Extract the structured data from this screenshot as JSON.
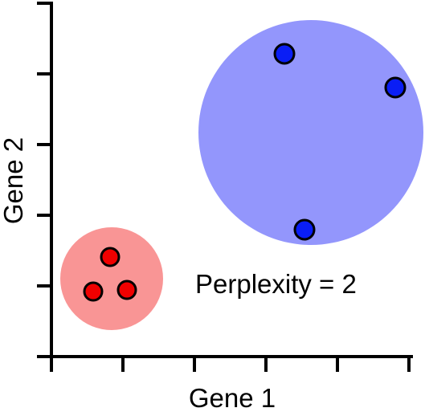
{
  "labels": {
    "x_axis": "Gene 1",
    "y_axis": "Gene 2",
    "annotation": "Perplexity = 2"
  },
  "colors": {
    "axis": "#000000",
    "blue_cluster_fill": "#9396fc",
    "blue_point": "#0a1ef5",
    "red_cluster_fill": "#f99595",
    "red_point": "#f00000"
  },
  "clusters": [
    {
      "name": "blue-cluster",
      "fill_key": "blue_cluster_fill",
      "point_key": "blue_point",
      "points": 3
    },
    {
      "name": "red-cluster",
      "fill_key": "red_cluster_fill",
      "point_key": "red_point",
      "points": 3
    }
  ]
}
